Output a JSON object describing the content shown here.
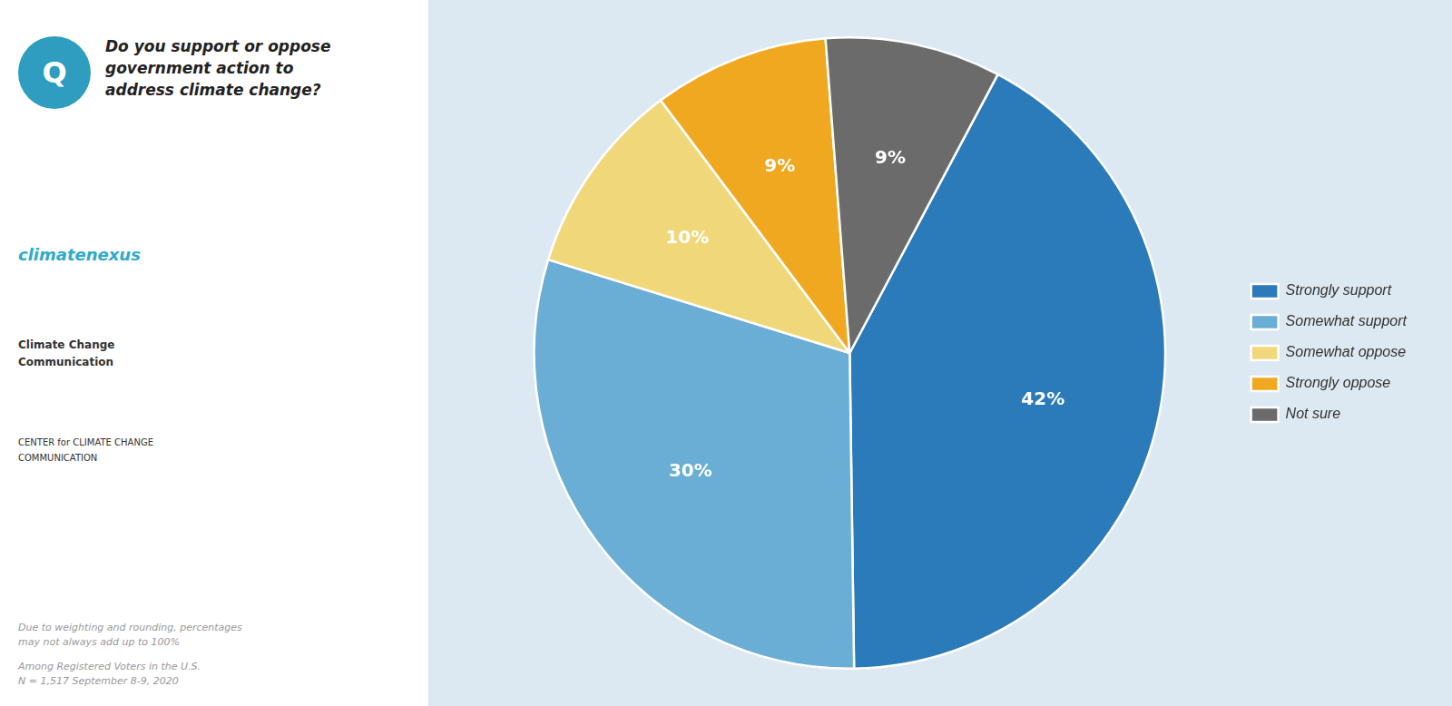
{
  "chart_data": {
    "type": "pie",
    "title": [
      "Do you support or oppose",
      "government action to",
      "address climate change?"
    ],
    "categories": [
      "Strongly support",
      "Somewhat support",
      "Somewhat oppose",
      "Strongly oppose",
      "Not sure"
    ],
    "values": [
      42,
      30,
      10,
      9,
      9
    ],
    "value_labels": [
      "42%",
      "30%",
      "10%",
      "9%",
      "9%"
    ],
    "colors": [
      "#2b7bba",
      "#6aaed6",
      "#f0d87a",
      "#f0a820",
      "#6b6b6b"
    ],
    "data_labels": true,
    "legend": "right",
    "annotations": [
      "Q",
      "climate",
      "nexus",
      "Climate Change",
      "Communication",
      "CENTER for CLIMATE CHANGE",
      "COMMUNICATION",
      "Due to weighting and rounding, percentages\nmay not always add up to 100%",
      "Among Registered Voters in the U.S.\nN = 1,517 September 8-9, 2020"
    ]
  }
}
